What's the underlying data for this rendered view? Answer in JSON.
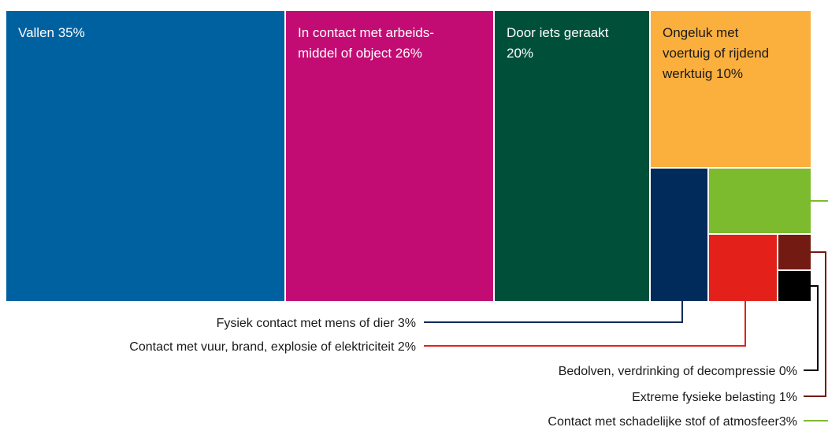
{
  "chart_data": {
    "type": "treemap",
    "title": "",
    "unit": "%",
    "items": [
      {
        "key": "vallen",
        "lines": [
          "Vallen 35%"
        ],
        "label": "Vallen",
        "value": 35,
        "color": "#0061a1",
        "label_dark": false
      },
      {
        "key": "arbeidsmiddel",
        "lines": [
          "In contact met arbeids-",
          "middel of object 26%"
        ],
        "label": "In contact met arbeidsmiddel of object",
        "value": 26,
        "color": "#c30c73",
        "label_dark": false
      },
      {
        "key": "geraakt",
        "lines": [
          "Door iets geraakt",
          "20%"
        ],
        "label": "Door iets geraakt",
        "value": 20,
        "color": "#005039",
        "label_dark": false
      },
      {
        "key": "voertuig",
        "lines": [
          "Ongeluk met",
          "voertuig of rijdend",
          "werktuig 10%"
        ],
        "label": "Ongeluk met voertuig of rijdend werktuig",
        "value": 10,
        "color": "#fbaf3d",
        "label_dark": true
      },
      {
        "key": "fysiek",
        "callout": "Fysiek contact met mens of dier 3%",
        "label": "Fysiek contact met mens of dier",
        "value": 3,
        "color": "#002b5a"
      },
      {
        "key": "schadelijk",
        "callout": "Contact met schadelijke stof of atmosfeer3%",
        "label": "Contact met schadelijke stof of atmosfeer",
        "value": 3,
        "color": "#7bbb2d"
      },
      {
        "key": "vuur",
        "callout": "Contact met vuur, brand, explosie of elektriciteit 2%",
        "label": "Contact met vuur, brand, explosie of elektriciteit",
        "value": 2,
        "color": "#e3211a"
      },
      {
        "key": "belasting",
        "callout": "Extreme fysieke belasting 1%",
        "label": "Extreme fysieke belasting",
        "value": 1,
        "color": "#731a13"
      },
      {
        "key": "bedolven",
        "callout": "Bedolven, verdrinking of decompressie 0%",
        "label": "Bedolven, verdrinking of decompressie",
        "value": 0,
        "color": "#000000"
      }
    ]
  }
}
